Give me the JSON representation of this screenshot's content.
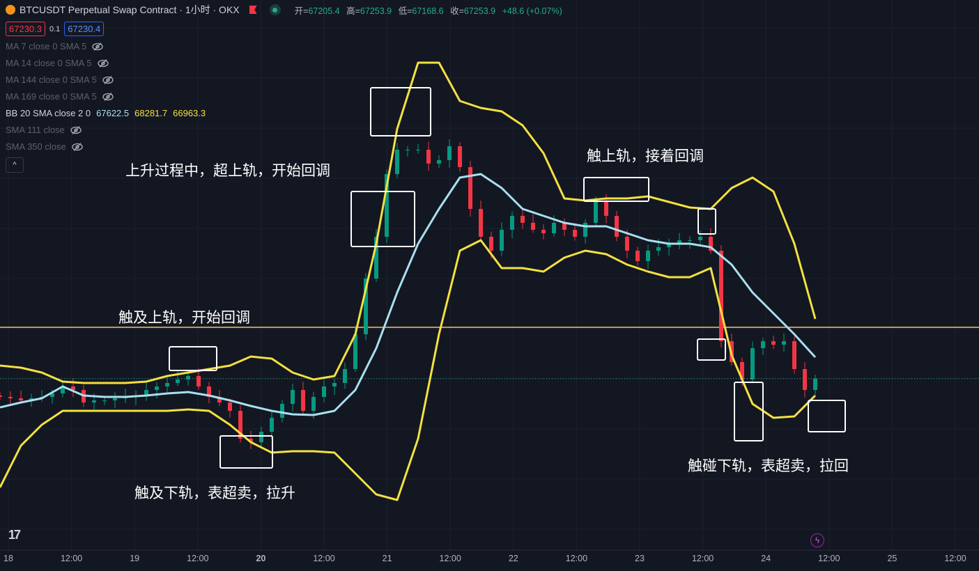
{
  "header": {
    "symbol_title": "BTCUSDT Perpetual Swap Contract · 1小时 · OKX",
    "ohlc": [
      {
        "label": "开=",
        "value": "67205.4"
      },
      {
        "label": "高=",
        "value": "67253.9"
      },
      {
        "label": "低=",
        "value": "67168.6"
      },
      {
        "label": "收=",
        "value": "67253.9"
      }
    ],
    "change": "+48.6 (+0.07%)",
    "bid": "67230.3",
    "spread": "0.1",
    "ask": "67230.4"
  },
  "indicators": [
    {
      "label": "MA 7 close 0 SMA 5",
      "hidden": true
    },
    {
      "label": "MA 14 close 0 SMA 5",
      "hidden": true
    },
    {
      "label": "MA 144 close 0 SMA 5",
      "hidden": true
    },
    {
      "label": "MA 169 close 0 SMA 5",
      "hidden": true
    },
    {
      "label": "BB 20 SMA close 2 0",
      "values": [
        "67622.5",
        "68281.7",
        "66963.3"
      ],
      "hidden": false
    },
    {
      "label": "SMA 111 close",
      "hidden": true
    },
    {
      "label": "SMA 350 close",
      "hidden": true
    }
  ],
  "collapse_label": "^",
  "annotations": [
    "上升过程中，超上轨，开始回调",
    "触上轨，接着回调",
    "触及上轨，开始回调",
    "触及下轨，表超卖，拉升",
    "触碰下轨，表超卖，拉回"
  ],
  "colors": {
    "background": "#131722",
    "up": "#089981",
    "down": "#f23645",
    "bb_upper": "#f5e040",
    "bb_lower": "#f5e040",
    "bb_basis": "#a8e0f0",
    "hline": "#f5c66a",
    "last_price": "#22ab94"
  },
  "chart_data": {
    "type": "candlestick",
    "xlabels": [
      "18",
      "12:00",
      "19",
      "12:00",
      "20",
      "12:00",
      "21",
      "12:00",
      "22",
      "12:00",
      "23",
      "12:00",
      "24",
      "12:00",
      "25",
      "12:00"
    ],
    "ylim": [
      64298,
      73778
    ],
    "grid": true,
    "horizontal_line": 68138,
    "last_price": 67253.9,
    "closes": [
      66938,
      66914,
      66878,
      66914,
      66938,
      66998,
      67118,
      67058,
      66842,
      66878,
      66878,
      66914,
      66938,
      66962,
      67058,
      67118,
      67178,
      67238,
      67298,
      67118,
      66938,
      66842,
      66698,
      66218,
      66158,
      66338,
      66578,
      66818,
      67058,
      66698,
      66938,
      67118,
      67178,
      67418,
      68018,
      68978,
      69698,
      70778,
      71198,
      71198,
      71198,
      70958,
      71018,
      71258,
      70898,
      70178,
      69698,
      69458,
      69818,
      70058,
      69938,
      69818,
      69758,
      69938,
      69818,
      69698,
      69938,
      70298,
      70058,
      69698,
      69458,
      69278,
      69458,
      69518,
      69578,
      69638,
      69638,
      69698,
      69458,
      67898,
      67538,
      67238,
      67778,
      67898,
      67838,
      67898,
      67418,
      67058,
      67254
    ],
    "bb_upper": [
      67478,
      67442,
      67358,
      67202,
      67178,
      67178,
      67178,
      67202,
      67298,
      67358,
      67418,
      67478,
      67634,
      67598,
      67358,
      67238,
      67298,
      68018,
      69578,
      71558,
      72698,
      72698,
      72038,
      71918,
      71858,
      71618,
      71138,
      70358,
      70322,
      70358,
      70358,
      70394,
      70298,
      70202,
      70178,
      70538,
      70718,
      70478,
      69578,
      68281.7
    ],
    "bb_basis": [
      66758,
      66842,
      66914,
      67118,
      66962,
      66938,
      66938,
      66962,
      66998,
      67022,
      66962,
      66878,
      66782,
      66698,
      66638,
      66626,
      66698,
      67058,
      67778,
      68738,
      69578,
      70178,
      70718,
      70778,
      70538,
      70178,
      70058,
      69938,
      69878,
      69878,
      69758,
      69638,
      69578,
      69578,
      69518,
      69218,
      68738,
      68378,
      68018,
      67622.5
    ],
    "bb_lower": [
      65378,
      66098,
      66458,
      66698,
      66698,
      66698,
      66698,
      66698,
      66698,
      66722,
      66698,
      66458,
      66158,
      65978,
      66002,
      66002,
      65978,
      65618,
      65258,
      65162,
      66218,
      68018,
      69458,
      69638,
      69158,
      69158,
      69098,
      69338,
      69458,
      69398,
      69218,
      69098,
      69002,
      69002,
      69158,
      67658,
      66818,
      66578,
      66602,
      66963.3
    ]
  }
}
